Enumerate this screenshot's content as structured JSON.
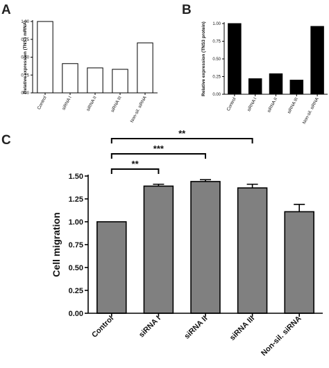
{
  "chart_data": [
    {
      "panel": "A",
      "type": "bar",
      "ylabel": "Relative expression (TNS3 mRNA)",
      "xlabel": "",
      "categories": [
        "Control",
        "siRNA I",
        "siRNA II",
        "siRNA III",
        "Non-sil. siRNA"
      ],
      "values": [
        1.0,
        0.41,
        0.35,
        0.33,
        0.7
      ],
      "ylim": [
        0,
        1.0
      ],
      "yticks": [
        "0.00",
        "0.25",
        "0.50",
        "0.75",
        "1.00"
      ],
      "bar_color": "#ffffff",
      "grid": false,
      "legend": "none"
    },
    {
      "panel": "B",
      "type": "bar",
      "ylabel": "Relative expression (TNS3 protein)",
      "xlabel": "",
      "categories": [
        "Control",
        "siRNA I",
        "siRNA II",
        "siRNA III",
        "Non-sil. siRNA"
      ],
      "values": [
        1.0,
        0.22,
        0.29,
        0.2,
        0.96
      ],
      "ylim": [
        0,
        1.0
      ],
      "yticks": [
        "0.00",
        "0.25",
        "0.50",
        "0.75",
        "1.00"
      ],
      "bar_color": "#000000",
      "grid": false,
      "legend": "none"
    },
    {
      "panel": "C",
      "type": "bar",
      "ylabel": "Cell migration",
      "xlabel": "",
      "categories": [
        "Control",
        "siRNA I",
        "siRNA II",
        "siRNA III",
        "Non-sil. siRNA"
      ],
      "values": [
        1.0,
        1.39,
        1.44,
        1.37,
        1.11
      ],
      "errors": [
        0.0,
        0.02,
        0.02,
        0.04,
        0.08
      ],
      "ylim": [
        0,
        1.5
      ],
      "yticks": [
        "0.00",
        "0.25",
        "0.50",
        "0.75",
        "1.00",
        "1.25",
        "1.50"
      ],
      "bar_color": "#808080",
      "grid": false,
      "legend": "none",
      "significance": [
        {
          "from": "Control",
          "to": "siRNA I",
          "label": "**"
        },
        {
          "from": "Control",
          "to": "siRNA II",
          "label": "***"
        },
        {
          "from": "Control",
          "to": "siRNA III",
          "label": "**"
        }
      ]
    }
  ]
}
